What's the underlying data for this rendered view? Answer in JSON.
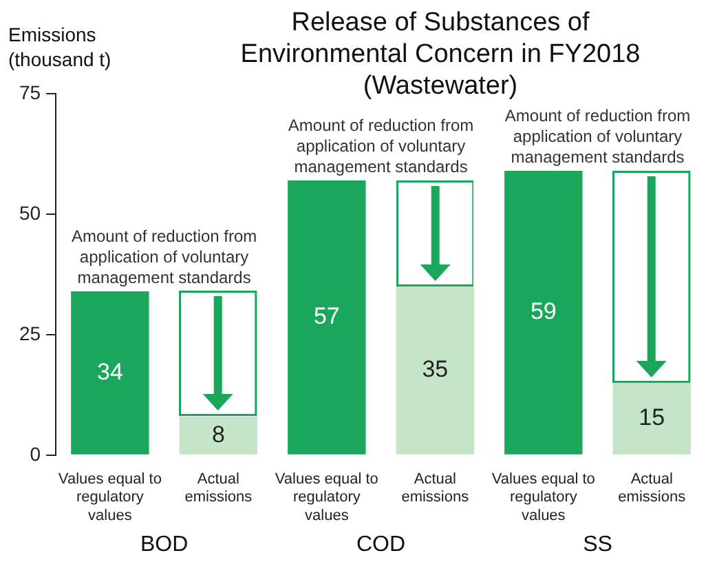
{
  "chart_data": {
    "type": "bar",
    "title": "Release of Substances of Environmental Concern in FY2018 (Wastewater)",
    "ylabel": "Emissions (thousand t)",
    "categories": [
      "Values equal to regulatory values",
      "Actual emissions",
      "Values equal to regulatory values",
      "Actual emissions",
      "Values equal to regulatory values",
      "Actual emissions"
    ],
    "series": [
      {
        "color": "#1aa75c",
        "values": [
          34,
          null,
          57,
          null,
          59,
          null
        ],
        "value_labels": [
          "34",
          null,
          "57",
          null,
          "59",
          null
        ]
      },
      {
        "color": "#c5e5c9",
        "values": [
          null,
          8,
          null,
          35,
          null,
          15
        ],
        "value_labels": [
          null,
          "8",
          null,
          "35",
          null,
          "15"
        ]
      }
    ],
    "stacked": true,
    "ylim": [
      0,
      75
    ],
    "yticks": [
      0,
      25,
      50,
      75
    ],
    "grid": false,
    "legend": false,
    "annotations": [
      "BOD",
      "COD",
      "SS",
      "Amount of reduction from application of voluntary management standards",
      "Amount of reduction from application of voluntary management standards",
      "Amount of reduction from application of voluntary management standards"
    ]
  }
}
